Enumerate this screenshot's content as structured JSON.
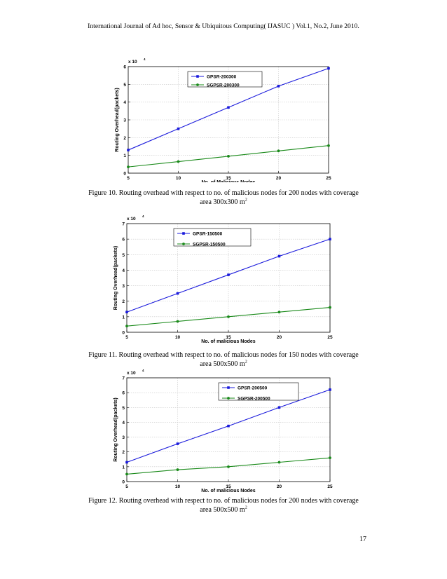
{
  "header": "International Journal of Ad hoc, Sensor & Ubiquitous Computing( IJASUC ) Vol.1, No.2, June 2010.",
  "page_number": "17",
  "colors": {
    "gpsr": "#1a1adc",
    "sgpsr": "#1a8a1a",
    "grid": "#c8c8c8"
  },
  "figures": [
    {
      "caption_line1": "Figure 10. Routing overhead with respect to no. of malicious nodes for 200 nodes with coverage",
      "caption_line2": "area 300x300 m",
      "caption_sup": "2"
    },
    {
      "caption_line1": "Figure 11. Routing overhead with respect to no. of malicious nodes for 150 nodes with coverage",
      "caption_line2": "area 500x500 m",
      "caption_sup": "2"
    },
    {
      "caption_line1": "Figure 12. Routing overhead with respect to no. of malicious nodes for 200 nodes with coverage",
      "caption_line2": "area 500x500 m",
      "caption_sup": "2"
    }
  ],
  "chart_data": [
    {
      "type": "line",
      "xlabel": "No. of Malicious Nodes",
      "ylabel": "Routing Overhead(packets)",
      "scale_label": "x 10",
      "scale_exp": "4",
      "x": [
        5,
        10,
        15,
        20,
        25
      ],
      "xlim": [
        5,
        25
      ],
      "ylim": [
        0,
        6
      ],
      "xticks": [
        "5",
        "10",
        "15",
        "20",
        "25"
      ],
      "yticks": [
        "0",
        "1",
        "2",
        "3",
        "4",
        "5",
        "6"
      ],
      "grid": true,
      "legend": "top-center",
      "series": [
        {
          "name": "GPSR-200300",
          "values": [
            1.3,
            2.5,
            3.7,
            4.9,
            5.9
          ],
          "color": "#1a1adc",
          "marker": "square"
        },
        {
          "name": "SGPSR-200300",
          "values": [
            0.35,
            0.65,
            0.95,
            1.25,
            1.55
          ],
          "color": "#1a8a1a",
          "marker": "dot"
        }
      ]
    },
    {
      "type": "line",
      "xlabel": "No. of malicious Nodes",
      "ylabel": "Routing Overhead(packets)",
      "scale_label": "x 10",
      "scale_exp": "4",
      "x": [
        5,
        10,
        15,
        20,
        25
      ],
      "xlim": [
        5,
        25
      ],
      "ylim": [
        0,
        7
      ],
      "xticks": [
        "5",
        "10",
        "15",
        "20",
        "25"
      ],
      "yticks": [
        "0",
        "1",
        "2",
        "3",
        "4",
        "5",
        "6",
        "7"
      ],
      "grid": true,
      "legend": "top-center",
      "series": [
        {
          "name": "GPSR-150500",
          "values": [
            1.3,
            2.5,
            3.7,
            4.9,
            6.0
          ],
          "color": "#1a1adc",
          "marker": "square"
        },
        {
          "name": "SGPSR-150500",
          "values": [
            0.4,
            0.7,
            1.0,
            1.3,
            1.6
          ],
          "color": "#1a8a1a",
          "marker": "dot"
        }
      ]
    },
    {
      "type": "line",
      "xlabel": "No. of malicious Nodes",
      "ylabel": "Routing Overhead(packets)",
      "scale_label": "x 10",
      "scale_exp": "4",
      "x": [
        5,
        10,
        15,
        20,
        25
      ],
      "xlim": [
        5,
        25
      ],
      "ylim": [
        0,
        7
      ],
      "xticks": [
        "5",
        "10",
        "15",
        "20",
        "25"
      ],
      "yticks": [
        "0",
        "1",
        "2",
        "3",
        "4",
        "5",
        "6",
        "7"
      ],
      "grid": true,
      "legend": "top-right",
      "series": [
        {
          "name": "GPSR-200500",
          "values": [
            1.3,
            2.55,
            3.75,
            5.0,
            6.2
          ],
          "color": "#1a1adc",
          "marker": "square"
        },
        {
          "name": "SGPSR-200500",
          "values": [
            0.5,
            0.8,
            1.0,
            1.3,
            1.6
          ],
          "color": "#1a8a1a",
          "marker": "dot"
        }
      ]
    }
  ]
}
